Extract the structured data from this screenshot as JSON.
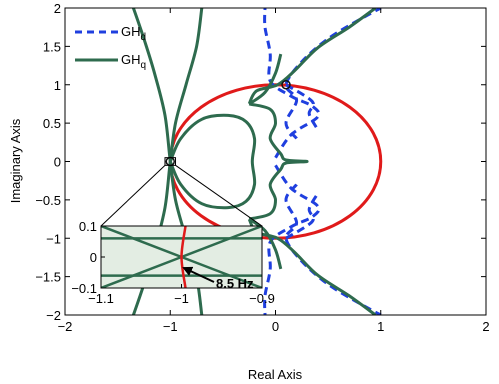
{
  "chart_data": {
    "type": "line",
    "title": "",
    "xlabel": "Real Axis",
    "ylabel": "Imaginary Axis",
    "xlim": [
      -2,
      2
    ],
    "ylim": [
      -2,
      2
    ],
    "xticks": [
      "−2",
      "−1",
      "0",
      "1",
      "2"
    ],
    "yticks": [
      "2",
      "1.5",
      "1",
      "0.5",
      "0",
      "−0.5",
      "−1",
      "−1.5",
      "−2"
    ],
    "grid": false,
    "legend_position": "top-left",
    "legend": [
      {
        "base": "GH",
        "sub": "d",
        "style": "dashed",
        "color": "#1f3fdf"
      },
      {
        "base": "GH",
        "sub": "q",
        "style": "solid",
        "color": "#2e6b4e"
      }
    ],
    "unit_circle": {
      "center": [
        0,
        0
      ],
      "radius": 1,
      "color": "#e01a1a"
    },
    "markers": [
      {
        "x": 0.1,
        "y": 1.0,
        "shape": "circle"
      },
      {
        "x": -1.0,
        "y": 0.0,
        "shape": "circle"
      }
    ],
    "series": [
      {
        "name": "GH_d",
        "color": "#1f3fdf",
        "style": "dashed",
        "branches": [
          [
            [
              0.2,
              -0.3
            ],
            [
              0.1,
              -0.5
            ],
            [
              0.2,
              -0.8
            ],
            [
              0.1,
              -1.0
            ],
            [
              0.25,
              -1.3
            ],
            [
              0.5,
              -1.6
            ],
            [
              0.8,
              -1.85
            ],
            [
              1.0,
              -2.0
            ]
          ],
          [
            [
              0.2,
              0.3
            ],
            [
              0.1,
              0.5
            ],
            [
              0.2,
              0.8
            ],
            [
              0.1,
              1.0
            ],
            [
              0.25,
              1.3
            ],
            [
              0.5,
              1.6
            ],
            [
              0.8,
              1.85
            ],
            [
              1.0,
              2.0
            ]
          ],
          [
            [
              0.0,
              -0.05
            ],
            [
              0.15,
              -0.35
            ],
            [
              0.4,
              -0.58
            ],
            [
              0.35,
              -0.72
            ],
            [
              0.15,
              -0.85
            ],
            [
              -0.05,
              -1.05
            ],
            [
              -0.05,
              -1.4
            ],
            [
              -0.1,
              -1.75
            ],
            [
              -0.1,
              -2.0
            ]
          ],
          [
            [
              0.0,
              0.05
            ],
            [
              0.15,
              0.35
            ],
            [
              0.4,
              0.58
            ],
            [
              0.35,
              0.72
            ],
            [
              0.15,
              0.85
            ],
            [
              -0.05,
              1.05
            ],
            [
              -0.05,
              1.4
            ],
            [
              -0.1,
              1.75
            ],
            [
              -0.1,
              2.0
            ]
          ],
          [
            [
              0.1,
              1.0
            ],
            [
              0.35,
              0.78
            ],
            [
              0.32,
              0.62
            ],
            [
              0.4,
              0.42
            ]
          ],
          [
            [
              0.1,
              -1.0
            ],
            [
              0.35,
              -0.78
            ],
            [
              0.32,
              -0.62
            ],
            [
              0.4,
              -0.42
            ]
          ]
        ]
      },
      {
        "name": "GH_q",
        "color": "#2e6b4e",
        "style": "solid",
        "branches": [
          [
            [
              -1.35,
              2.0
            ],
            [
              -1.25,
              1.6
            ],
            [
              -1.15,
              1.15
            ],
            [
              -1.05,
              0.6
            ],
            [
              -1.0,
              0.0
            ],
            [
              -0.95,
              -0.5
            ],
            [
              -0.85,
              -1.0
            ],
            [
              -0.75,
              -1.5
            ],
            [
              -0.7,
              -2.0
            ]
          ],
          [
            [
              -1.35,
              -2.0
            ],
            [
              -1.25,
              -1.6
            ],
            [
              -1.15,
              -1.15
            ],
            [
              -1.05,
              -0.6
            ],
            [
              -1.0,
              0.0
            ],
            [
              -0.95,
              0.5
            ],
            [
              -0.85,
              1.0
            ],
            [
              -0.75,
              1.5
            ],
            [
              -0.7,
              2.0
            ]
          ],
          [
            [
              -1.0,
              0.0
            ],
            [
              -0.9,
              0.3
            ],
            [
              -0.7,
              0.55
            ],
            [
              -0.45,
              0.6
            ],
            [
              -0.28,
              0.52
            ],
            [
              -0.2,
              0.3
            ],
            [
              -0.22,
              0.0
            ],
            [
              -0.2,
              -0.3
            ],
            [
              -0.28,
              -0.52
            ],
            [
              -0.45,
              -0.6
            ],
            [
              -0.7,
              -0.55
            ],
            [
              -0.9,
              -0.3
            ],
            [
              -1.0,
              0.0
            ]
          ],
          [
            [
              -0.25,
              0.75
            ],
            [
              -0.05,
              0.68
            ],
            [
              0.0,
              0.5
            ],
            [
              -0.05,
              0.3
            ],
            [
              0.05,
              0.1
            ],
            [
              0.1,
              0.02
            ],
            [
              0.3,
              0.0
            ],
            [
              0.1,
              -0.02
            ],
            [
              0.05,
              -0.1
            ],
            [
              -0.05,
              -0.3
            ],
            [
              0.0,
              -0.5
            ],
            [
              -0.05,
              -0.68
            ],
            [
              -0.25,
              -0.75
            ]
          ],
          [
            [
              -0.25,
              0.75
            ],
            [
              -0.18,
              0.92
            ],
            [
              0.02,
              1.0
            ],
            [
              0.18,
              1.18
            ],
            [
              0.4,
              1.48
            ],
            [
              0.7,
              1.75
            ],
            [
              0.95,
              2.0
            ]
          ],
          [
            [
              -0.25,
              -0.75
            ],
            [
              -0.18,
              -0.92
            ],
            [
              0.02,
              -1.0
            ],
            [
              0.18,
              -1.18
            ],
            [
              0.4,
              -1.48
            ],
            [
              0.7,
              -1.75
            ],
            [
              0.95,
              -2.0
            ]
          ],
          [
            [
              -0.25,
              0.75
            ],
            [
              -0.1,
              0.9
            ],
            [
              0.0,
              1.15
            ],
            [
              0.05,
              1.4
            ]
          ],
          [
            [
              -0.25,
              -0.75
            ],
            [
              -0.1,
              -0.9
            ],
            [
              0.0,
              -1.15
            ],
            [
              0.05,
              -1.4
            ]
          ]
        ]
      }
    ],
    "zoom_box": {
      "x": [
        -1.05,
        -0.95
      ],
      "y": [
        -0.05,
        0.05
      ]
    },
    "inset": {
      "xlim": [
        -1.1,
        -0.9
      ],
      "ylim": [
        -0.1,
        0.1
      ],
      "xticks": [
        "−1.1",
        "−1",
        "−0.9"
      ],
      "yticks": [
        "0.1",
        "0",
        "−0.1"
      ],
      "background": "#e3ede3",
      "lines": [
        {
          "color": "#2e6b4e",
          "points": [
            [
              -1.1,
              0.1
            ],
            [
              -0.9,
              -0.1
            ]
          ]
        },
        {
          "color": "#2e6b4e",
          "points": [
            [
              -1.1,
              -0.1
            ],
            [
              -0.9,
              0.1
            ]
          ]
        },
        {
          "color": "#2e6b4e",
          "points": [
            [
              -1.1,
              0.06
            ],
            [
              -0.9,
              0.06
            ]
          ]
        },
        {
          "color": "#2e6b4e",
          "points": [
            [
              -1.1,
              -0.06
            ],
            [
              -0.9,
              -0.06
            ]
          ]
        },
        {
          "color": "#e01a1a",
          "points": [
            [
              -0.995,
              0.1
            ],
            [
              -1.0,
              0.0
            ],
            [
              -0.995,
              -0.1
            ]
          ]
        }
      ],
      "callout": {
        "label": "8.5 Hz",
        "point": [
          -1.0,
          0.0
        ]
      }
    }
  }
}
